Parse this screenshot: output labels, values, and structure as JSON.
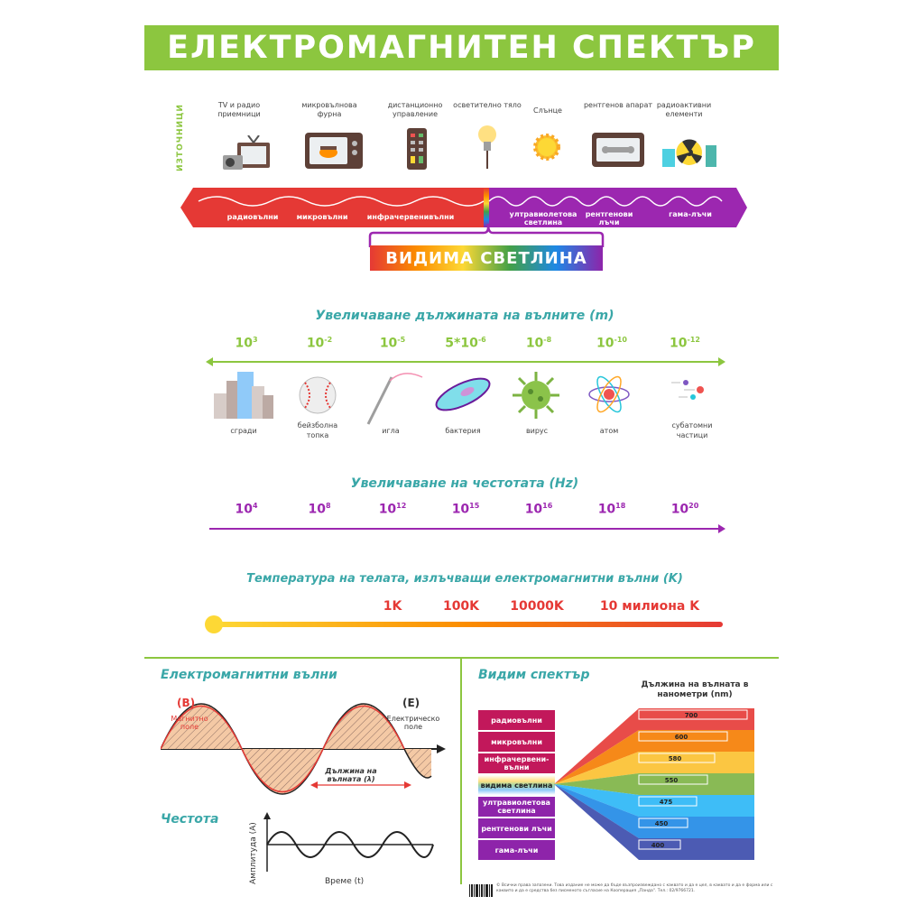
{
  "title": "ЕЛЕКТРОМАГНИТЕН СПЕКТЪР",
  "sources_label": "ИЗТОЧНИЦИ",
  "sources": [
    {
      "label": "TV и радио приемници",
      "icon": "tv-radio-icon"
    },
    {
      "label": "микровълнова фурна",
      "icon": "microwave-icon"
    },
    {
      "label": "дистанционно управление",
      "icon": "remote-control-icon"
    },
    {
      "label": "осветително тяло",
      "icon": "light-bulb-icon"
    },
    {
      "label": "Слънце",
      "icon": "sun-icon"
    },
    {
      "label": "рентгенов апарат",
      "icon": "xray-machine-icon"
    },
    {
      "label": "радиоактивни елементи",
      "icon": "radioactive-icon"
    }
  ],
  "bands": [
    "радиовълни",
    "микровълни",
    "инфрачервенивълни",
    "ултравиолетова светлина",
    "рентгенови лъчи",
    "гама-лъчи"
  ],
  "visible_light": "ВИДИМА СВЕТЛИНА",
  "wavelength": {
    "title": "Увеличаване дължината на вълните (m)",
    "values": [
      {
        "base": "10",
        "exp": "3"
      },
      {
        "base": "10",
        "exp": "-2"
      },
      {
        "base": "10",
        "exp": "-5"
      },
      {
        "base": "5*10",
        "exp": "-6"
      },
      {
        "base": "10",
        "exp": "-8"
      },
      {
        "base": "10",
        "exp": "-10"
      },
      {
        "base": "10",
        "exp": "-12"
      }
    ],
    "objects": [
      "сгради",
      "бейзболна топка",
      "игла",
      "бактерия",
      "вирус",
      "атом",
      "субатомни частици"
    ]
  },
  "frequency": {
    "title": "Увеличаване на честотата (Hz)",
    "values": [
      {
        "base": "10",
        "exp": "4"
      },
      {
        "base": "10",
        "exp": "8"
      },
      {
        "base": "10",
        "exp": "12"
      },
      {
        "base": "10",
        "exp": "15"
      },
      {
        "base": "10",
        "exp": "16"
      },
      {
        "base": "10",
        "exp": "18"
      },
      {
        "base": "10",
        "exp": "20"
      }
    ]
  },
  "temperature": {
    "title": "Температура на телата, излъчващи електромагнитни вълни (K)",
    "values": [
      "1K",
      "100K",
      "10000K",
      "10 милиона K"
    ]
  },
  "em_waves": {
    "title": "Електромагнитни вълни",
    "b_symbol": "(B)",
    "b_label": "Магнитно поле",
    "e_symbol": "(E)",
    "e_label": "Електрическо поле",
    "wavelength_label": "Дължина на вълната (λ)"
  },
  "frequency_panel": {
    "title": "Честота",
    "y_label": "Амплитуда (A)",
    "x_label": "Време (t)"
  },
  "visible_spectrum": {
    "title": "Видим спектър",
    "header": "Дължина на вълната в нанометри (nm)",
    "rows": [
      "радиовълни",
      "микровълни",
      "инфрачервени-вълни",
      "видима светлина",
      "ултравиолетова светлина",
      "рентгенови лъчи",
      "гама-лъчи"
    ],
    "nm": [
      "700",
      "600",
      "580",
      "550",
      "475",
      "450",
      "400"
    ],
    "colors": [
      "#e53935",
      "#f57c00",
      "#fbc02d",
      "#7cb342",
      "#29b6f6",
      "#1e88e5",
      "#3949ab"
    ]
  },
  "copyright": "© Всички права запазени. Това издание не може да бъде възпроизвеждано с каквато и да е цел, в каквато и да е форма или с каквито и да е средства без писменото съгласие на Кооперация „Панда\". Тел.: 02/9766721."
}
